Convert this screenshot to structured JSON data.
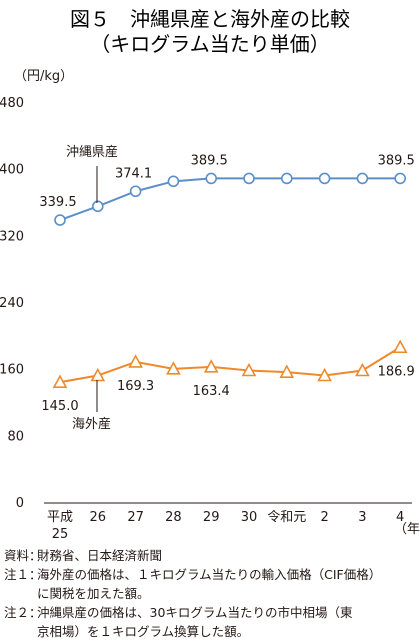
{
  "title_line1": "図５　沖縄県産と海外産の比較",
  "title_line2": "（キログラム当たり単価）",
  "chart_data": {
    "type": "line",
    "title": "図５　沖縄県産と海外産の比較（キログラム当たり単価）",
    "ylabel": "（円/kg）",
    "xlabel": "（年）",
    "ylim": [
      0,
      480
    ],
    "yticks": [
      0,
      80,
      160,
      240,
      320,
      400,
      480
    ],
    "grid": false,
    "categories": [
      "平成\n25",
      "26",
      "27",
      "28",
      "29",
      "30",
      "令和元",
      "2",
      "3",
      "4"
    ],
    "series": [
      {
        "name": "沖縄県産",
        "color": "#5b8fc9",
        "marker": "circle",
        "values": [
          339.5,
          356,
          374.1,
          386,
          389.5,
          389.5,
          389.5,
          389.5,
          389.5,
          389.5
        ],
        "labels": [
          [
            0,
            "339.5"
          ],
          [
            2,
            "374.1"
          ],
          [
            4,
            "389.5"
          ],
          [
            9,
            "389.5"
          ]
        ]
      },
      {
        "name": "海外産",
        "color": "#ee8a2c",
        "marker": "triangle",
        "values": [
          145.0,
          153,
          169.3,
          161,
          163.4,
          159,
          157,
          153,
          159,
          186.9
        ],
        "labels": [
          [
            0,
            "145.0"
          ],
          [
            2,
            "169.3"
          ],
          [
            4,
            "163.4"
          ],
          [
            9,
            "186.9"
          ]
        ]
      }
    ]
  },
  "notes": [
    {
      "lead": "資料：",
      "text": "財務省、日本経済新聞"
    },
    {
      "lead": "注１：",
      "text": "海外産の価格は、１キログラム当たりの輸入価格（CIF価格）"
    },
    {
      "lead": "",
      "text": "に関税を加えた額。"
    },
    {
      "lead": "注２：",
      "text": "沖縄県産の価格は、30キログラム当たりの市中相場（東"
    },
    {
      "lead": "",
      "text": "京相場）を１キログラム換算した額。"
    }
  ]
}
